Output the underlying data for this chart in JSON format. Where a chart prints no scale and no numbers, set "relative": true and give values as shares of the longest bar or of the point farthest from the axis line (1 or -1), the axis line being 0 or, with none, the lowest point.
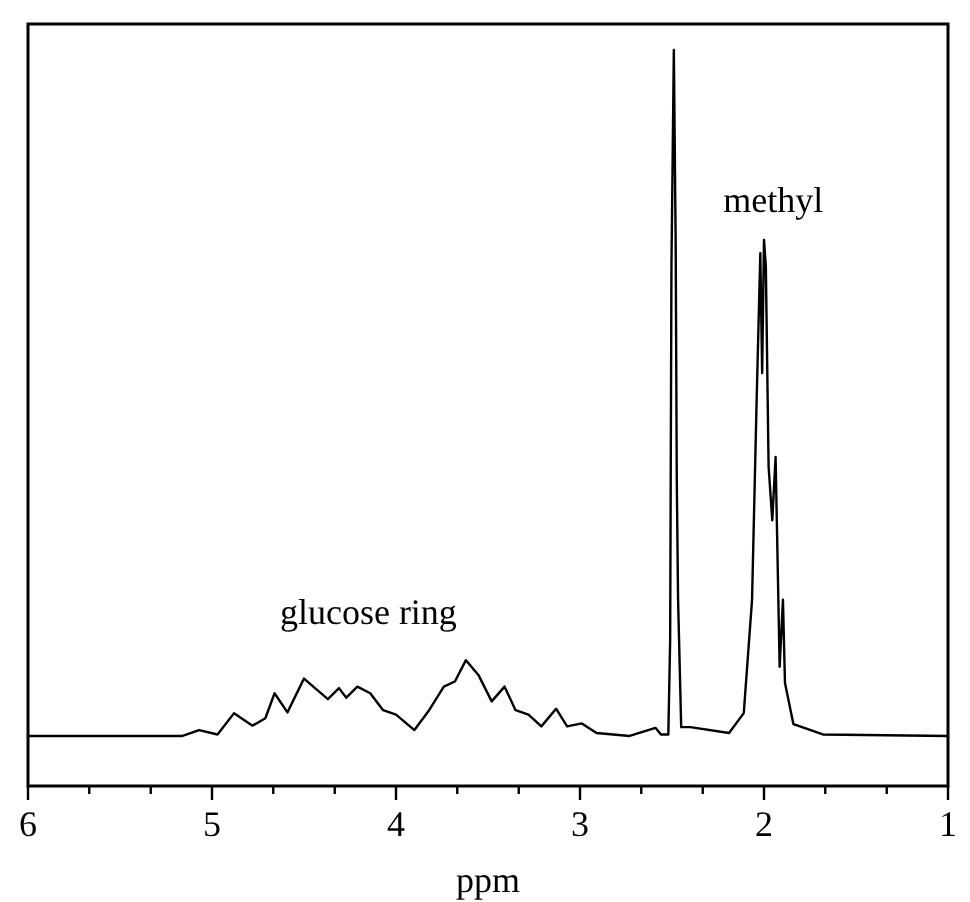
{
  "chart_data": {
    "type": "line",
    "xlabel": "ppm",
    "relative": true,
    "xlim": [
      6,
      1
    ],
    "xticks": [
      6,
      {
        "value": 5.667,
        "label": null
      },
      {
        "value": 5.333,
        "label": null
      },
      5,
      {
        "value": 4.667,
        "label": null
      },
      {
        "value": 4.333,
        "label": null
      },
      4,
      {
        "value": 3.667,
        "label": null
      },
      {
        "value": 3.333,
        "label": null
      },
      3,
      {
        "value": 2.667,
        "label": null
      },
      {
        "value": 2.333,
        "label": null
      },
      2,
      {
        "value": 1.667,
        "label": null
      },
      {
        "value": 1.333,
        "label": null
      },
      1
    ],
    "series": [
      {
        "color": "#000000",
        "x": [
          6.0,
          5.16,
          5.07,
          4.97,
          4.88,
          4.78,
          4.71,
          4.66,
          4.59,
          4.5,
          4.44,
          4.37,
          4.31,
          4.27,
          4.21,
          4.14,
          4.07,
          4.0,
          3.9,
          3.82,
          3.74,
          3.68,
          3.62,
          3.55,
          3.48,
          3.41,
          3.35,
          3.28,
          3.21,
          3.13,
          3.07,
          2.99,
          2.91,
          2.73,
          2.59,
          2.56,
          2.52,
          2.51,
          2.503,
          2.49,
          2.48,
          2.474,
          2.467,
          2.45,
          2.4,
          2.19,
          2.11,
          2.065,
          2.04,
          2.02,
          2.01,
          2.0,
          1.99,
          1.975,
          1.955,
          1.937,
          1.915,
          1.897,
          1.886,
          1.84,
          1.68,
          1.0
        ],
        "values": [
          0.068,
          0.068,
          0.076,
          0.07,
          0.099,
          0.082,
          0.092,
          0.126,
          0.1,
          0.146,
          0.133,
          0.118,
          0.133,
          0.12,
          0.135,
          0.126,
          0.103,
          0.097,
          0.076,
          0.103,
          0.135,
          0.142,
          0.171,
          0.15,
          0.115,
          0.135,
          0.103,
          0.097,
          0.081,
          0.105,
          0.081,
          0.085,
          0.072,
          0.068,
          0.079,
          0.07,
          0.07,
          0.198,
          0.706,
          1,
          0.737,
          0.416,
          0.253,
          0.08,
          0.08,
          0.072,
          0.099,
          0.253,
          0.524,
          0.724,
          0.561,
          0.742,
          0.706,
          0.434,
          0.361,
          0.447,
          0.162,
          0.253,
          0.14,
          0.084,
          0.07,
          0.068
        ]
      }
    ],
    "annotations": [
      "glucose ring",
      "methyl"
    ]
  }
}
